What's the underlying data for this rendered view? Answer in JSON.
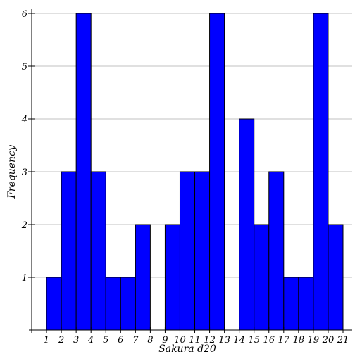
{
  "chart_data": {
    "type": "bar",
    "xlabel": "Sakura d20",
    "ylabel": "Frequency",
    "x_ticks": [
      1,
      2,
      3,
      4,
      5,
      6,
      7,
      8,
      9,
      10,
      11,
      12,
      13,
      14,
      15,
      16,
      17,
      18,
      19,
      20,
      21
    ],
    "x_tick_labels": [
      "1",
      "2",
      "3",
      "4",
      "5",
      "6",
      "7",
      "8",
      "9",
      "10",
      "11",
      "12",
      "13",
      "14",
      "15",
      "16",
      "17",
      "18",
      "19",
      "20",
      "21"
    ],
    "y_ticks": [
      1,
      2,
      3,
      4,
      5,
      6
    ],
    "y_tick_labels": [
      "1",
      "2",
      "3",
      "4",
      "5",
      "6"
    ],
    "xlim": [
      0,
      21
    ],
    "ylim": [
      0,
      6
    ],
    "grid": true,
    "bin_width": 1,
    "bins": [
      {
        "x": 1,
        "value": 1
      },
      {
        "x": 2,
        "value": 3
      },
      {
        "x": 3,
        "value": 6
      },
      {
        "x": 4,
        "value": 3
      },
      {
        "x": 5,
        "value": 1
      },
      {
        "x": 6,
        "value": 1
      },
      {
        "x": 7,
        "value": 2
      },
      {
        "x": 8,
        "value": 0
      },
      {
        "x": 9,
        "value": 2
      },
      {
        "x": 10,
        "value": 3
      },
      {
        "x": 11,
        "value": 3
      },
      {
        "x": 12,
        "value": 6
      },
      {
        "x": 13,
        "value": 0
      },
      {
        "x": 14,
        "value": 4
      },
      {
        "x": 15,
        "value": 2
      },
      {
        "x": 16,
        "value": 3
      },
      {
        "x": 17,
        "value": 1
      },
      {
        "x": 18,
        "value": 1
      },
      {
        "x": 19,
        "value": 6
      },
      {
        "x": 20,
        "value": 2
      }
    ],
    "colors": {
      "bar_fill": "#0000ff",
      "bar_stroke": "#000000",
      "grid": "#c0c0c0",
      "axis": "#000000"
    }
  }
}
